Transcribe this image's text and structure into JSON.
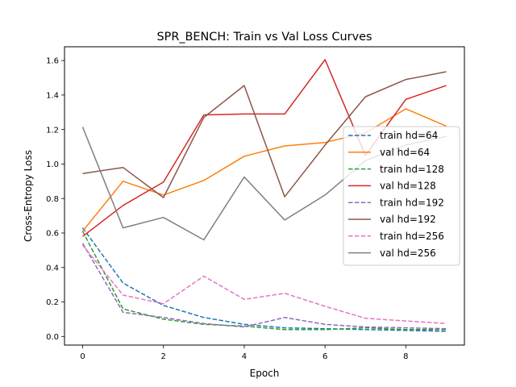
{
  "chart_data": {
    "type": "line",
    "title": "SPR_BENCH: Train vs Val Loss Curves",
    "xlabel": "Epoch",
    "ylabel": "Cross-Entropy Loss",
    "xlim": [
      -0.45,
      9.45
    ],
    "ylim": [
      -0.05,
      1.68
    ],
    "xticks": [
      0,
      2,
      4,
      6,
      8
    ],
    "yticks": [
      0.0,
      0.2,
      0.4,
      0.6,
      0.8,
      1.0,
      1.2,
      1.4,
      1.6
    ],
    "xtick_labels": [
      "0",
      "2",
      "4",
      "6",
      "8"
    ],
    "ytick_labels": [
      "0.0",
      "0.2",
      "0.4",
      "0.6",
      "0.8",
      "1.0",
      "1.2",
      "1.4",
      "1.6"
    ],
    "grid": false,
    "legend_position": "center-right",
    "x": [
      0,
      1,
      2,
      3,
      4,
      5,
      6,
      7,
      8,
      9
    ],
    "series": [
      {
        "name": "train hd=64",
        "color": "#1f77b4",
        "dash": true,
        "values": [
          0.63,
          0.31,
          0.18,
          0.11,
          0.07,
          0.05,
          0.045,
          0.04,
          0.035,
          0.03
        ]
      },
      {
        "name": "val hd=64",
        "color": "#ff7f0e",
        "dash": false,
        "values": [
          0.61,
          0.9,
          0.82,
          0.905,
          1.045,
          1.105,
          1.125,
          1.18,
          1.32,
          1.22
        ]
      },
      {
        "name": "train hd=128",
        "color": "#2ca02c",
        "dash": true,
        "values": [
          0.61,
          0.16,
          0.1,
          0.07,
          0.06,
          0.04,
          0.04,
          0.05,
          0.04,
          0.04
        ]
      },
      {
        "name": "val hd=128",
        "color": "#d62728",
        "dash": false,
        "values": [
          0.58,
          0.76,
          0.895,
          1.285,
          1.29,
          1.29,
          1.605,
          1.05,
          1.375,
          1.455
        ]
      },
      {
        "name": "train hd=192",
        "color": "#9467bd",
        "dash": true,
        "values": [
          0.54,
          0.14,
          0.11,
          0.075,
          0.055,
          0.11,
          0.07,
          0.055,
          0.05,
          0.045
        ]
      },
      {
        "name": "val hd=192",
        "color": "#8c564b",
        "dash": false,
        "values": [
          0.945,
          0.98,
          0.805,
          1.27,
          1.455,
          0.81,
          1.11,
          1.39,
          1.49,
          1.535
        ]
      },
      {
        "name": "train hd=256",
        "color": "#e377c2",
        "dash": true,
        "values": [
          0.53,
          0.24,
          0.19,
          0.35,
          0.215,
          0.25,
          0.175,
          0.105,
          0.09,
          0.075
        ]
      },
      {
        "name": "val hd=256",
        "color": "#7f7f7f",
        "dash": false,
        "values": [
          1.215,
          0.63,
          0.69,
          0.56,
          0.925,
          0.675,
          0.82,
          1.02,
          1.11,
          1.16
        ]
      }
    ]
  }
}
